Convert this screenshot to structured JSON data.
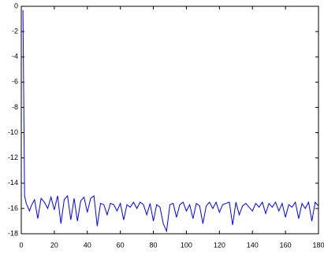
{
  "chart_data": {
    "type": "line",
    "x": [
      1,
      2,
      3,
      4,
      5,
      6,
      8,
      10,
      12,
      14,
      16,
      18,
      20,
      22,
      24,
      26,
      28,
      30,
      32,
      34,
      36,
      38,
      40,
      42,
      44,
      46,
      48,
      50,
      52,
      54,
      56,
      58,
      60,
      62,
      64,
      66,
      68,
      70,
      72,
      74,
      76,
      78,
      80,
      82,
      84,
      86,
      88,
      90,
      92,
      94,
      96,
      98,
      100,
      102,
      104,
      106,
      108,
      110,
      112,
      114,
      116,
      118,
      120,
      122,
      124,
      126,
      128,
      130,
      132,
      134,
      136,
      138,
      140,
      142,
      144,
      146,
      148,
      150,
      152,
      154,
      156,
      158,
      160,
      162,
      164,
      166,
      168,
      170,
      172,
      174,
      176,
      178,
      180
    ],
    "series": [
      {
        "color": "#0000ff",
        "values": [
          -0.3,
          -15.0,
          -15.6,
          -15.9,
          -16.2,
          -15.8,
          -15.3,
          -16.8,
          -15.2,
          -15.5,
          -16.0,
          -15.1,
          -16.1,
          -15.0,
          -17.2,
          -15.3,
          -15.0,
          -16.9,
          -15.2,
          -17.0,
          -15.4,
          -15.1,
          -16.3,
          -15.2,
          -15.0,
          -17.4,
          -15.6,
          -15.7,
          -16.5,
          -15.6,
          -15.7,
          -16.2,
          -15.6,
          -16.9,
          -15.7,
          -15.9,
          -15.5,
          -16.0,
          -15.5,
          -15.7,
          -16.5,
          -15.6,
          -17.0,
          -15.7,
          -15.9,
          -17.2,
          -17.8,
          -15.7,
          -15.6,
          -16.7,
          -15.7,
          -15.5,
          -16.2,
          -15.7,
          -16.8,
          -15.6,
          -15.8,
          -17.2,
          -15.8,
          -15.5,
          -16.0,
          -15.5,
          -16.3,
          -15.7,
          -15.6,
          -15.5,
          -17.3,
          -15.5,
          -16.5,
          -15.8,
          -15.6,
          -15.9,
          -16.2,
          -15.6,
          -15.9,
          -15.5,
          -16.4,
          -15.6,
          -15.9,
          -15.5,
          -16.2,
          -15.6,
          -16.7,
          -15.7,
          -15.9,
          -15.5,
          -16.8,
          -15.6,
          -16.0,
          -15.5,
          -17.0,
          -15.5,
          -15.8
        ]
      }
    ],
    "xlim": [
      0,
      180
    ],
    "xticks": [
      0,
      20,
      40,
      60,
      80,
      100,
      120,
      140,
      160,
      180
    ],
    "ylim": [
      -18,
      0
    ],
    "yticks": [
      0,
      -2,
      -4,
      -6,
      -8,
      -10,
      -12,
      -14,
      -16,
      -18
    ]
  }
}
